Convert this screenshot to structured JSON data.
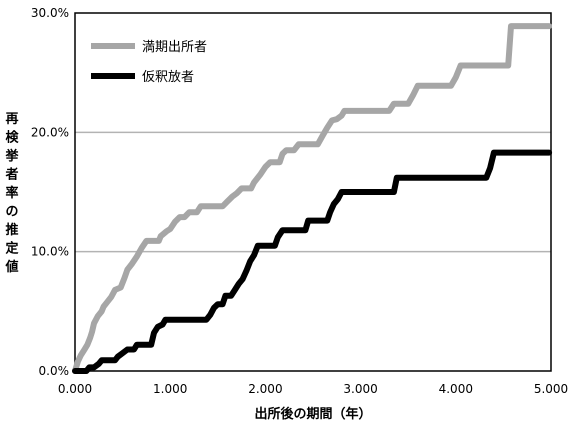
{
  "chart_data": {
    "type": "line",
    "title": "",
    "xlabel": "出所後の期間（年）",
    "ylabel": "再検挙者率の推定値",
    "xlim": [
      0,
      5
    ],
    "ylim": [
      0,
      30
    ],
    "x_tick_labels": [
      "0.000",
      "1.000",
      "2.000",
      "3.000",
      "4.000",
      "5.000"
    ],
    "y_tick_labels": [
      "0.0%",
      "10.0%",
      "20.0%",
      "30.0%"
    ],
    "grid": "horizontal",
    "legend_position": "top-left",
    "series": [
      {
        "name": "満期出所者",
        "color": "#a6a6a6",
        "points": [
          [
            0.0,
            0.0
          ],
          [
            0.03,
            0.8
          ],
          [
            0.06,
            1.3
          ],
          [
            0.1,
            1.8
          ],
          [
            0.13,
            2.2
          ],
          [
            0.16,
            2.8
          ],
          [
            0.18,
            3.3
          ],
          [
            0.2,
            4.0
          ],
          [
            0.24,
            4.6
          ],
          [
            0.28,
            5.0
          ],
          [
            0.3,
            5.4
          ],
          [
            0.34,
            5.8
          ],
          [
            0.38,
            6.2
          ],
          [
            0.42,
            6.8
          ],
          [
            0.48,
            7.0
          ],
          [
            0.52,
            7.8
          ],
          [
            0.55,
            8.5
          ],
          [
            0.6,
            9.0
          ],
          [
            0.65,
            9.6
          ],
          [
            0.7,
            10.3
          ],
          [
            0.75,
            10.9
          ],
          [
            0.88,
            10.9
          ],
          [
            0.9,
            11.3
          ],
          [
            0.96,
            11.7
          ],
          [
            1.0,
            11.9
          ],
          [
            1.05,
            12.5
          ],
          [
            1.1,
            12.9
          ],
          [
            1.15,
            12.9
          ],
          [
            1.2,
            13.3
          ],
          [
            1.28,
            13.3
          ],
          [
            1.32,
            13.8
          ],
          [
            1.55,
            13.8
          ],
          [
            1.6,
            14.2
          ],
          [
            1.65,
            14.6
          ],
          [
            1.7,
            14.9
          ],
          [
            1.75,
            15.3
          ],
          [
            1.85,
            15.3
          ],
          [
            1.88,
            15.8
          ],
          [
            1.95,
            16.5
          ],
          [
            2.0,
            17.1
          ],
          [
            2.05,
            17.5
          ],
          [
            2.15,
            17.5
          ],
          [
            2.18,
            18.2
          ],
          [
            2.22,
            18.5
          ],
          [
            2.3,
            18.5
          ],
          [
            2.35,
            19.0
          ],
          [
            2.55,
            19.0
          ],
          [
            2.6,
            19.7
          ],
          [
            2.65,
            20.4
          ],
          [
            2.7,
            21.0
          ],
          [
            2.75,
            21.1
          ],
          [
            2.8,
            21.4
          ],
          [
            2.83,
            21.8
          ],
          [
            3.3,
            21.8
          ],
          [
            3.35,
            22.4
          ],
          [
            3.5,
            22.4
          ],
          [
            3.55,
            23.1
          ],
          [
            3.6,
            23.9
          ],
          [
            3.95,
            23.9
          ],
          [
            4.0,
            24.6
          ],
          [
            4.05,
            25.6
          ],
          [
            4.55,
            25.6
          ],
          [
            4.58,
            28.9
          ],
          [
            4.98,
            28.9
          ]
        ]
      },
      {
        "name": "仮釈放者",
        "color": "#000000",
        "points": [
          [
            0.0,
            0.0
          ],
          [
            0.12,
            0.0
          ],
          [
            0.15,
            0.3
          ],
          [
            0.2,
            0.3
          ],
          [
            0.25,
            0.6
          ],
          [
            0.28,
            0.9
          ],
          [
            0.42,
            0.9
          ],
          [
            0.45,
            1.2
          ],
          [
            0.5,
            1.5
          ],
          [
            0.55,
            1.8
          ],
          [
            0.62,
            1.8
          ],
          [
            0.65,
            2.2
          ],
          [
            0.8,
            2.2
          ],
          [
            0.83,
            3.2
          ],
          [
            0.87,
            3.7
          ],
          [
            0.92,
            3.9
          ],
          [
            0.95,
            4.3
          ],
          [
            1.38,
            4.3
          ],
          [
            1.42,
            4.7
          ],
          [
            1.46,
            5.3
          ],
          [
            1.5,
            5.6
          ],
          [
            1.55,
            5.6
          ],
          [
            1.58,
            6.3
          ],
          [
            1.64,
            6.3
          ],
          [
            1.68,
            6.8
          ],
          [
            1.72,
            7.3
          ],
          [
            1.76,
            7.7
          ],
          [
            1.8,
            8.4
          ],
          [
            1.84,
            9.2
          ],
          [
            1.88,
            9.7
          ],
          [
            1.92,
            10.5
          ],
          [
            2.1,
            10.5
          ],
          [
            2.13,
            11.2
          ],
          [
            2.18,
            11.8
          ],
          [
            2.42,
            11.8
          ],
          [
            2.45,
            12.6
          ],
          [
            2.65,
            12.6
          ],
          [
            2.68,
            13.3
          ],
          [
            2.72,
            14.0
          ],
          [
            2.76,
            14.4
          ],
          [
            2.8,
            15.0
          ],
          [
            3.35,
            15.0
          ],
          [
            3.38,
            16.2
          ],
          [
            4.32,
            16.2
          ],
          [
            4.36,
            17.0
          ],
          [
            4.4,
            18.3
          ],
          [
            4.98,
            18.3
          ]
        ]
      }
    ]
  }
}
